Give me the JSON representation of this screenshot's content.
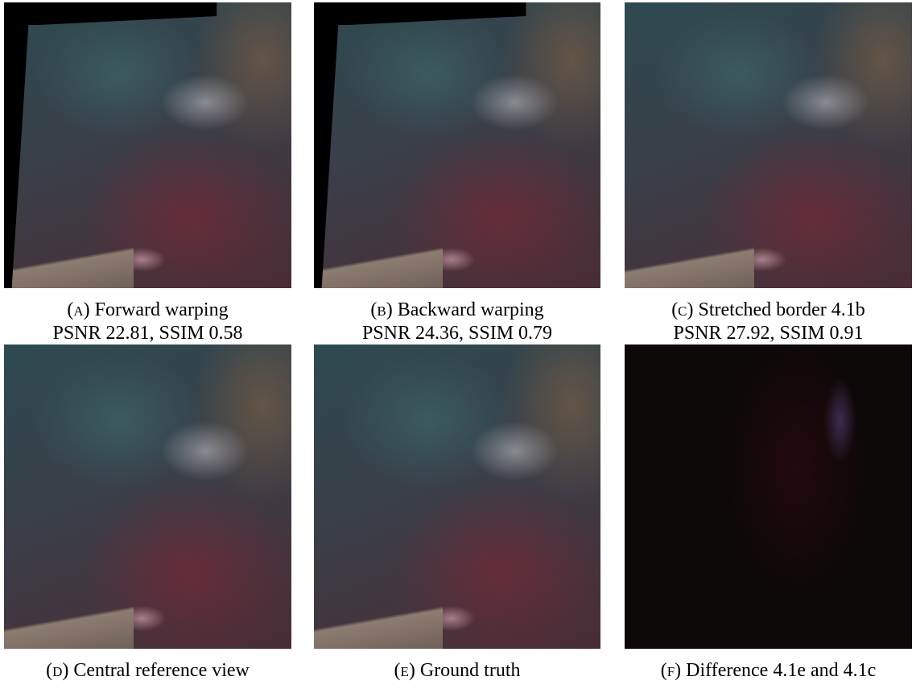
{
  "panels": [
    {
      "label": "(a)",
      "caption": "Forward warping",
      "metrics": "PSNR 22.81, SSIM 0.58"
    },
    {
      "label": "(b)",
      "caption": "Backward warping",
      "metrics": "PSNR 24.36, SSIM 0.79"
    },
    {
      "label": "(c)",
      "caption": "Stretched border 4.1b",
      "metrics": "PSNR 27.92, SSIM 0.91"
    },
    {
      "label": "(d)",
      "caption": "Central reference view"
    },
    {
      "label": "(e)",
      "caption": "Ground truth"
    },
    {
      "label": "(f)",
      "caption": "Difference 4.1e and 4.1c"
    }
  ]
}
